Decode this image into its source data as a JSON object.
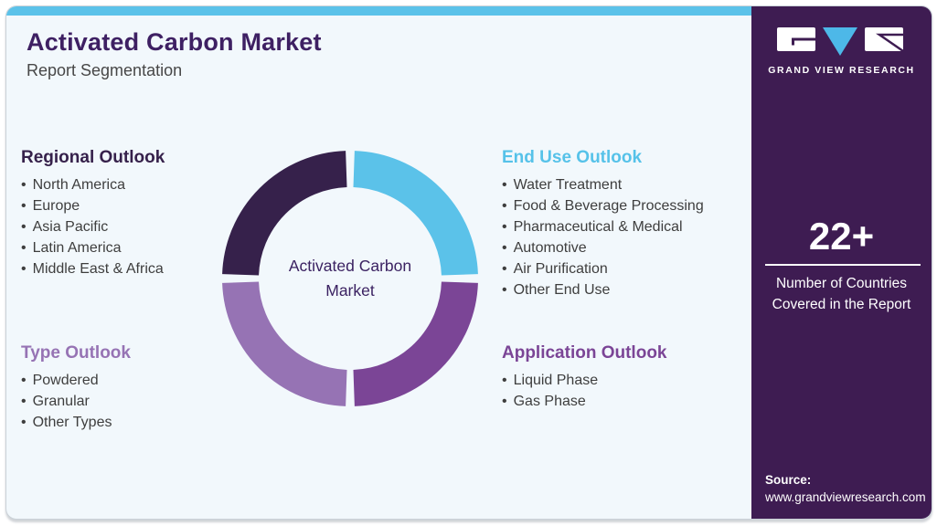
{
  "header": {
    "title": "Activated Carbon Market",
    "subtitle": "Report Segmentation"
  },
  "donut": {
    "center_label_line1": "Activated Carbon",
    "center_label_line2": "Market",
    "segments": [
      {
        "name": "Regional Outlook",
        "position": "top-left",
        "color": "#36214B",
        "share": 25
      },
      {
        "name": "End Use Outlook",
        "position": "top-right",
        "color": "#5BC2E9",
        "share": 25
      },
      {
        "name": "Application Outlook",
        "position": "bottom-right",
        "color": "#7B4596",
        "share": 25
      },
      {
        "name": "Type Outlook",
        "position": "bottom-left",
        "color": "#9673B4",
        "share": 25
      }
    ]
  },
  "outlooks": {
    "regional": {
      "heading": "Regional Outlook",
      "color": "#36214B",
      "items": [
        "North America",
        "Europe",
        "Asia Pacific",
        "Latin America",
        "Middle East & Africa"
      ]
    },
    "end_use": {
      "heading": "End Use Outlook",
      "color": "#56C2E9",
      "items": [
        "Water Treatment",
        "Food & Beverage Processing",
        "Pharmaceutical & Medical",
        "Automotive",
        "Air Purification",
        "Other End Use"
      ]
    },
    "type": {
      "heading": "Type Outlook",
      "color": "#9673B4",
      "items": [
        "Powdered",
        "Granular",
        "Other Types"
      ]
    },
    "application": {
      "heading": "Application Outlook",
      "color": "#7B4596",
      "items": [
        "Liquid Phase",
        "Gas Phase"
      ]
    }
  },
  "sidebar": {
    "logo_text": "GRAND VIEW RESEARCH",
    "stat_value": "22+",
    "stat_caption_line1": "Number of Countries",
    "stat_caption_line2": "Covered in the Report",
    "source_label": "Source:",
    "source_url": "www.grandviewresearch.com"
  },
  "colors": {
    "top_bar": "#5BC2E9",
    "card_background": "#F2F8FC",
    "sidebar_background": "#3E1C52",
    "title_text": "#3E2063",
    "body_text": "#3E3E3E",
    "logo_accent": "#4DB8E8"
  }
}
